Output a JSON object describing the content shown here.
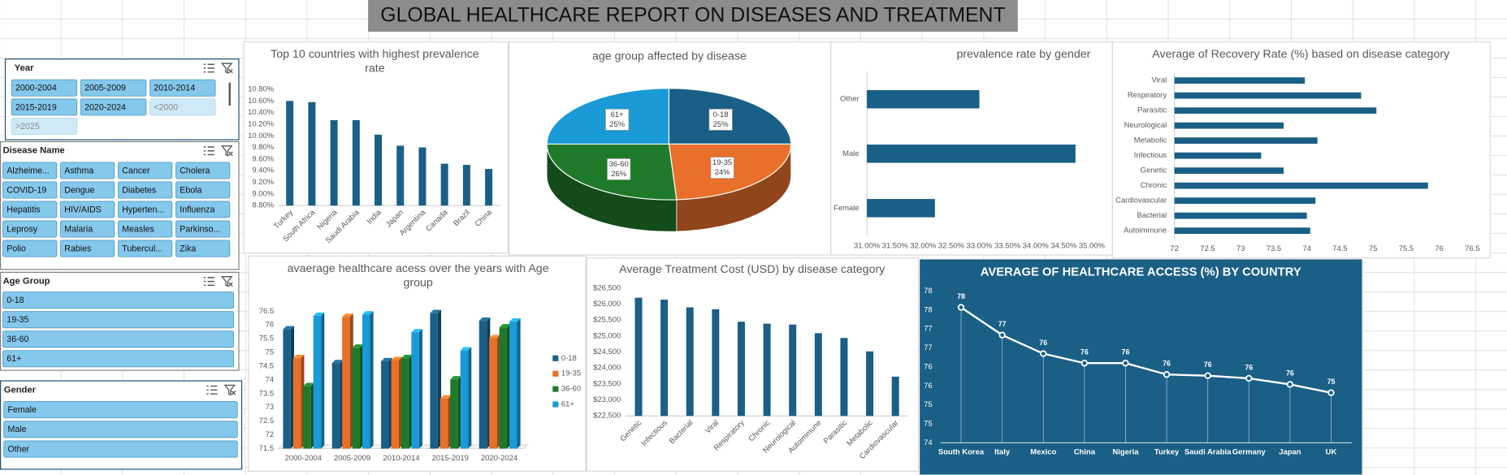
{
  "title": "GLOBAL HEALTHCARE  REPORT ON DISEASES AND TREATMENT",
  "slicers": [
    {
      "title": "Year",
      "items": [
        "2000-2004",
        "2005-2009",
        "2010-2014",
        "2015-2019",
        "2020-2024",
        "<2000",
        ">2025"
      ]
    },
    {
      "title": "Disease Name",
      "items": [
        "Alzheime...",
        "Asthma",
        "Cancer",
        "Cholera",
        "COVID-19",
        "Dengue",
        "Diabetes",
        "Ebola",
        "Hepatitis",
        "HIV/AIDS",
        "Hyperten...",
        "Influenza",
        "Leprosy",
        "Malaria",
        "Measles",
        "Parkinso...",
        "Polio",
        "Rabies",
        "Tubercul...",
        "Zika"
      ]
    },
    {
      "title": "Age Group",
      "items": [
        "0-18",
        "19-35",
        "36-60",
        "61+"
      ]
    },
    {
      "title": "Gender",
      "items": [
        "Female",
        "Male",
        "Other"
      ]
    }
  ],
  "chart_data": [
    {
      "type": "bar",
      "title": "Top  10 countries with highest prevalence rate",
      "categories": [
        "Turkey",
        "South Africa",
        "Nigeria",
        "Saudi Arabia",
        "India",
        "Japan",
        "Argentina",
        "Canada",
        "Brazil",
        "China"
      ],
      "values": [
        10.6,
        10.58,
        10.27,
        10.27,
        10.02,
        9.83,
        9.8,
        9.52,
        9.5,
        9.43
      ],
      "color": "#1a5f86",
      "ylim": [
        8.8,
        10.8
      ],
      "yticks": [
        {
          "value": 8.8,
          "label": "8.80%"
        },
        {
          "value": 9.0,
          "label": "9.00%"
        },
        {
          "value": 9.2,
          "label": "9.20%"
        },
        {
          "value": 9.4,
          "label": "9.40%"
        },
        {
          "value": 9.6,
          "label": "9.60%"
        },
        {
          "value": 9.8,
          "label": "9.80%"
        },
        {
          "value": 10.0,
          "label": "10.00%"
        },
        {
          "value": 10.2,
          "label": "10.20%"
        },
        {
          "value": 10.4,
          "label": "10.40%"
        },
        {
          "value": 10.6,
          "label": "10.60%"
        },
        {
          "value": 10.8,
          "label": "10.80%"
        }
      ]
    },
    {
      "type": "pie",
      "title": "age group affected by disease",
      "categories": [
        "0-18",
        "19-35",
        "36-60",
        "61+"
      ],
      "values": [
        25,
        24,
        26,
        25
      ],
      "value_labels": [
        "25%",
        "24%",
        "26%",
        "25%"
      ],
      "colors": [
        "#1a5f86",
        "#e8702a",
        "#1e7a2a",
        "#1a9ad6"
      ]
    },
    {
      "type": "barh",
      "title": "prevalence rate by gender",
      "categories": [
        "Other",
        "Male",
        "Female"
      ],
      "values": [
        33.0,
        34.71,
        32.21
      ],
      "color": "#1a5f86",
      "xlim": [
        31,
        35
      ],
      "xticks": [
        {
          "value": 31,
          "label": "31.00%"
        },
        {
          "value": 31.5,
          "label": "31.50%"
        },
        {
          "value": 32,
          "label": "32.00%"
        },
        {
          "value": 32.5,
          "label": "32.50%"
        },
        {
          "value": 33,
          "label": "33.00%"
        },
        {
          "value": 33.5,
          "label": "33.50%"
        },
        {
          "value": 34,
          "label": "34.00%"
        },
        {
          "value": 34.5,
          "label": "34.50%"
        },
        {
          "value": 35,
          "label": "35.00%"
        }
      ]
    },
    {
      "type": "barh",
      "title": "Average of Recovery Rate (%) based on disease category",
      "categories": [
        "Viral",
        "Respiratory",
        "Parasitic",
        "Neurological",
        "Metabolic",
        "Infectious",
        "Genetic",
        "Chronic",
        "Cardiovascular",
        "Bacterial",
        "Autoimmune"
      ],
      "values": [
        73.97,
        74.82,
        75.05,
        73.65,
        74.16,
        73.31,
        73.65,
        75.83,
        74.13,
        74.0,
        74.05
      ],
      "color": "#1a5f86",
      "xlim": [
        72,
        76.5
      ],
      "xticks": [
        72,
        72.5,
        73,
        73.5,
        74,
        74.5,
        75,
        75.5,
        76,
        76.5
      ]
    },
    {
      "type": "bar3d",
      "title": "avaerage healthcare acess over the years with  Age group",
      "categories": [
        "2000-2004",
        "2005-2009",
        "2010-2014",
        "2015-2019",
        "2020-2024"
      ],
      "series": [
        {
          "name": "0-18",
          "color": "#1a5f86",
          "values": [
            75.84,
            74.61,
            74.68,
            76.43,
            76.15
          ]
        },
        {
          "name": "19-35",
          "color": "#e8702a",
          "values": [
            74.79,
            76.29,
            74.72,
            73.32,
            75.52
          ]
        },
        {
          "name": "36-60",
          "color": "#1e7a2a",
          "values": [
            73.77,
            75.17,
            74.79,
            74.02,
            75.91
          ]
        },
        {
          "name": "61+",
          "color": "#1a9ad6",
          "values": [
            76.33,
            76.38,
            75.73,
            75.07,
            76.12
          ]
        }
      ],
      "ylim": [
        71.5,
        76.5
      ],
      "yticks": [
        71.5,
        72,
        72.5,
        73,
        73.5,
        74,
        74.5,
        75,
        75.5,
        76,
        76.5
      ],
      "legend": "right"
    },
    {
      "type": "bar",
      "title": "Average Treatment Cost (USD) by disease category",
      "categories": [
        "Genetic",
        "Infectious",
        "Bacterial",
        "Viral",
        "Respiratory",
        "Chronic",
        "Neurological",
        "Autoimmune",
        "Parasitic",
        "Metabolic",
        "Cardiovascular"
      ],
      "values": [
        26200,
        26140,
        25900,
        25840,
        25450,
        25390,
        25360,
        25090,
        24940,
        24520,
        23730
      ],
      "color": "#1a5f86",
      "ylim": [
        22500,
        26500
      ],
      "yticks": [
        {
          "value": 22500,
          "label": "$22,500"
        },
        {
          "value": 23000,
          "label": "$23,000"
        },
        {
          "value": 23500,
          "label": "$23,500"
        },
        {
          "value": 24000,
          "label": "$24,000"
        },
        {
          "value": 24500,
          "label": "$24,500"
        },
        {
          "value": 25000,
          "label": "$25,000"
        },
        {
          "value": 25500,
          "label": "$25,500"
        },
        {
          "value": 26000,
          "label": "$26,000"
        },
        {
          "value": 26500,
          "label": "$26,500"
        }
      ]
    },
    {
      "type": "line",
      "title": "AVERAGE OF HEALTHCARE ACCESS (%) BY COUNTRY",
      "categories": [
        "South Korea",
        "Italy",
        "Mexico",
        "China",
        "Nigeria",
        "Turkey",
        "Saudi Arabia",
        "Germany",
        "Japan",
        "UK"
      ],
      "values": [
        77.57,
        76.84,
        76.35,
        76.1,
        76.1,
        75.8,
        75.77,
        75.7,
        75.54,
        75.32
      ],
      "value_labels": [
        "78",
        "77",
        "76",
        "76",
        "76",
        "76",
        "76",
        "76",
        "76",
        "75"
      ],
      "color": "#ffffff",
      "background": "#1a5f86",
      "ylim": [
        74,
        78
      ],
      "yticks": [
        74,
        {
          "value": 74.5,
          "label": "75"
        },
        75,
        {
          "value": 75.5,
          "label": "76"
        },
        76,
        {
          "value": 76.5,
          "label": "77"
        },
        77,
        {
          "value": 77.5,
          "label": "78"
        },
        78
      ]
    }
  ]
}
